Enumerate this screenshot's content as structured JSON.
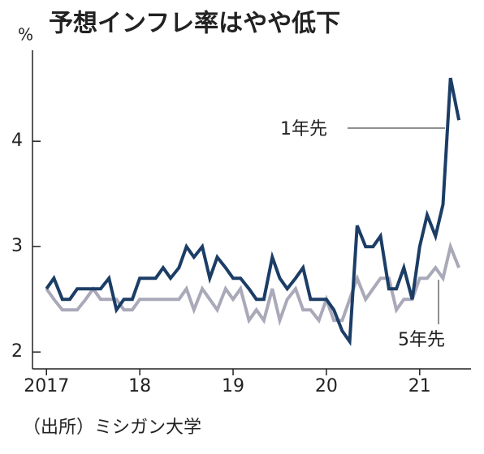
{
  "chart_data": {
    "type": "line",
    "title": "予想インフレ率はやや低下",
    "y_label": "%",
    "source": "（出所）ミシガン大学",
    "x": [
      2017,
      2017.08,
      2017.17,
      2017.25,
      2017.33,
      2017.42,
      2017.5,
      2017.58,
      2017.67,
      2017.75,
      2017.83,
      2017.92,
      2018,
      2018.08,
      2018.17,
      2018.25,
      2018.33,
      2018.42,
      2018.5,
      2018.58,
      2018.67,
      2018.75,
      2018.83,
      2018.92,
      2019,
      2019.08,
      2019.17,
      2019.25,
      2019.33,
      2019.42,
      2019.5,
      2019.58,
      2019.67,
      2019.75,
      2019.83,
      2019.92,
      2020,
      2020.08,
      2020.17,
      2020.25,
      2020.33,
      2020.42,
      2020.5,
      2020.58,
      2020.67,
      2020.75,
      2020.83,
      2020.92,
      2021,
      2021.08,
      2021.17,
      2021.25,
      2021.33,
      2021.42
    ],
    "series": [
      {
        "name": "1年先",
        "color": "#1b3d66",
        "values": [
          2.6,
          2.7,
          2.5,
          2.5,
          2.6,
          2.6,
          2.6,
          2.6,
          2.7,
          2.4,
          2.5,
          2.5,
          2.7,
          2.7,
          2.7,
          2.8,
          2.7,
          2.8,
          3.0,
          2.9,
          3.0,
          2.7,
          2.9,
          2.8,
          2.7,
          2.7,
          2.6,
          2.5,
          2.5,
          2.9,
          2.7,
          2.6,
          2.7,
          2.8,
          2.5,
          2.5,
          2.5,
          2.4,
          2.2,
          2.1,
          3.2,
          3.0,
          3.0,
          3.1,
          2.6,
          2.6,
          2.8,
          2.5,
          3.0,
          3.3,
          3.1,
          3.4,
          4.6,
          4.2
        ]
      },
      {
        "name": "5年先",
        "color": "#a9a9b9",
        "values": [
          2.6,
          2.5,
          2.4,
          2.4,
          2.4,
          2.5,
          2.6,
          2.5,
          2.5,
          2.5,
          2.4,
          2.4,
          2.5,
          2.5,
          2.5,
          2.5,
          2.5,
          2.5,
          2.6,
          2.4,
          2.6,
          2.5,
          2.4,
          2.6,
          2.5,
          2.6,
          2.3,
          2.4,
          2.3,
          2.6,
          2.3,
          2.5,
          2.6,
          2.4,
          2.4,
          2.3,
          2.5,
          2.3,
          2.3,
          2.5,
          2.7,
          2.5,
          2.6,
          2.7,
          2.7,
          2.4,
          2.5,
          2.5,
          2.7,
          2.7,
          2.8,
          2.7,
          3.0,
          2.8
        ]
      }
    ],
    "xlim": [
      2016.85,
      2021.55
    ],
    "xticks": [
      2017,
      {
        "value": 2018,
        "label": "18"
      },
      {
        "value": 2019,
        "label": "19"
      },
      {
        "value": 2020,
        "label": "20"
      },
      {
        "value": 2021,
        "label": "21"
      }
    ],
    "ylim": [
      1.84,
      4.84
    ],
    "yticks": [
      2,
      3,
      4
    ]
  }
}
